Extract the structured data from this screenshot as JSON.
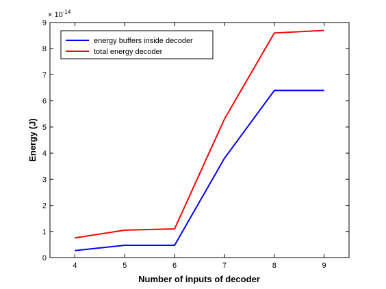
{
  "chart_data": {
    "type": "line",
    "title": "",
    "xlabel": "Number of inputs of decoder",
    "ylabel": "Energy (J)",
    "y_scale_label": "× 10",
    "y_scale_exponent": "-14",
    "x": [
      4,
      5,
      6,
      7,
      8,
      9
    ],
    "xlim": [
      3.5,
      9.5
    ],
    "ylim": [
      0,
      9
    ],
    "xticks": [
      4,
      5,
      6,
      7,
      8,
      9
    ],
    "yticks": [
      0,
      1,
      2,
      3,
      4,
      5,
      6,
      7,
      8,
      9
    ],
    "grid": false,
    "legend_position": "top-left",
    "series": [
      {
        "name": "energy buffers inside decoder",
        "color": "#0000ff",
        "values": [
          0.27,
          0.47,
          0.47,
          3.8,
          6.4,
          6.4
        ]
      },
      {
        "name": "total energy decoder",
        "color": "#ff0000",
        "values": [
          0.75,
          1.05,
          1.1,
          5.3,
          8.6,
          8.7
        ]
      }
    ]
  }
}
